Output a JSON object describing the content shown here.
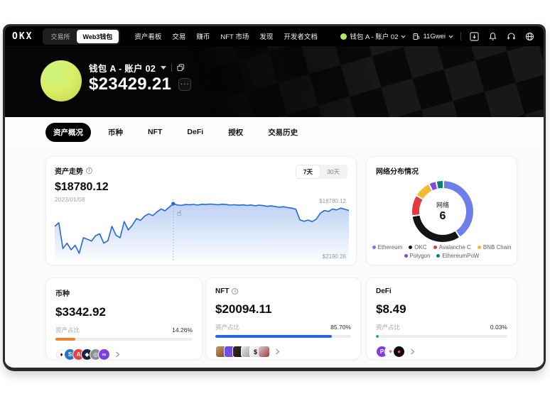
{
  "nav": {
    "logo": "OKX",
    "toggle": [
      {
        "label": "交易所",
        "active": false
      },
      {
        "label": "Web3钱包",
        "active": true
      }
    ],
    "menu": [
      "资产看板",
      "交易",
      "赚币",
      "NFT 市场",
      "发现",
      "开发者文档"
    ],
    "account_label": "钱包 A - 账户 02",
    "gas_label": "11Gwei"
  },
  "header": {
    "wallet_name": "钱包 A - 账户 02",
    "balance": "$23429.21",
    "more_label": "···"
  },
  "tabs": [
    {
      "label": "资产概况",
      "active": true
    },
    {
      "label": "币种",
      "active": false
    },
    {
      "label": "NFT",
      "active": false
    },
    {
      "label": "DeFi",
      "active": false
    },
    {
      "label": "授权",
      "active": false
    },
    {
      "label": "交易历史",
      "active": false
    }
  ],
  "trend": {
    "title": "资产走势",
    "value": "$18780.12",
    "date": "2023/01/08",
    "ranges": [
      {
        "label": "7天",
        "active": true
      },
      {
        "label": "30天",
        "active": false
      }
    ],
    "max_label": "$18780.12",
    "min_label": "$2190.26"
  },
  "network": {
    "title": "网络分布情况",
    "center_label": "网络",
    "center_value": "6",
    "segments": [
      {
        "name": "Ethereum",
        "color": "#6e7fe8",
        "deg": 142
      },
      {
        "name": "OKC",
        "color": "#141414",
        "deg": 112
      },
      {
        "name": "Avalanche C",
        "color": "#e23b3c",
        "deg": 37
      },
      {
        "name": "BNB Chain",
        "color": "#f3ba2f",
        "deg": 29
      },
      {
        "name": "Polygon",
        "color": "#8247e5",
        "deg": 11
      },
      {
        "name": "EthereumPoW",
        "color": "#0d7e7e",
        "deg": 11
      }
    ]
  },
  "cards": [
    {
      "title": "币种",
      "value": "$3342.92",
      "ratio_label": "资产占比",
      "ratio": "14.26%",
      "bar_pct": 14.26,
      "bar_color": "#f0812d",
      "icons": [
        {
          "bg": "#ffffff",
          "fg": "#111111",
          "glyph": "♦",
          "border": "#e4e4e4"
        },
        {
          "bg": "#2775ca",
          "fg": "#ffffff",
          "glyph": "S"
        },
        {
          "bg": "#e84142",
          "fg": "#ffffff",
          "glyph": "A"
        },
        {
          "bg": "#16253f",
          "fg": "#ffffff",
          "glyph": "◆"
        },
        {
          "bg": "#8a8f98",
          "fg": "#ffffff",
          "glyph": "◎"
        },
        {
          "bg": "#7b3fe4",
          "fg": "#ffffff",
          "glyph": "∞"
        }
      ]
    },
    {
      "title": "NFT",
      "value": "$20094.11",
      "ratio_label": "资产占比",
      "ratio": "85.70%",
      "bar_pct": 85.7,
      "bar_color": "#2767e6",
      "thumbs": [
        {
          "bg1": "#c79a6b",
          "bg2": "#6e4a28",
          "glyph": ""
        },
        {
          "bg1": "#5a5ae8",
          "bg2": "#8a3fe0",
          "glyph": ""
        },
        {
          "bg1": "#3a2f22",
          "bg2": "#141009",
          "glyph": ""
        },
        {
          "bg1": "#e8e8e8",
          "bg2": "#9a9a9a",
          "glyph": ""
        },
        {
          "bg1": "#f6f6f6",
          "bg2": "#dddddd",
          "glyph": "$"
        },
        {
          "bg1": "#cfcfcf",
          "bg2": "#a43b3b",
          "glyph": ""
        }
      ]
    },
    {
      "title": "DeFi",
      "value": "$8.49",
      "ratio_label": "资产占比",
      "ratio": "0.03%",
      "bar_pct": 2.2,
      "bar_color": "#10b981",
      "icons": [
        {
          "bg": "#7b3fe4",
          "fg": "#ffffff",
          "glyph": "P"
        },
        {
          "bg": "#ffffff",
          "fg": "#e85ca0",
          "glyph": "♥",
          "border": "#eeeeee"
        },
        {
          "bg": "#0b0b0b",
          "fg": "#e84ca4",
          "glyph": "●"
        }
      ]
    }
  ],
  "chart_data": {
    "type": "line",
    "title": "资产走势 (7天)",
    "ylabel": "USD",
    "x_range": [
      "2023/01/02",
      "2023/01/08"
    ],
    "y_min": 2190.26,
    "y_max": 18780.12,
    "line_color": "#2468d9",
    "cursor": {
      "x_index": 29,
      "value": 18780.12,
      "date": "2023/01/08"
    },
    "values": [
      11200,
      12400,
      3800,
      5600,
      3400,
      4900,
      2190,
      7400,
      6900,
      6300,
      8100,
      8700,
      5600,
      6400,
      11200,
      8200,
      7400,
      12800,
      10000,
      11600,
      13800,
      13200,
      14600,
      15400,
      14800,
      16000,
      17000,
      16400,
      17600,
      18780,
      18350,
      18200,
      18500,
      18400,
      18550,
      18300,
      18600,
      18500,
      18650,
      18550,
      18400,
      18600,
      18500,
      18300,
      18450,
      18250,
      18400,
      18200,
      18350,
      18100,
      18300,
      18150,
      17900,
      18050,
      17800,
      17600,
      17750,
      17500,
      17300,
      16900,
      13400,
      12900,
      13300,
      12800,
      13600,
      15600,
      16500,
      16200,
      17000,
      16700,
      17300,
      16900,
      16500
    ]
  }
}
